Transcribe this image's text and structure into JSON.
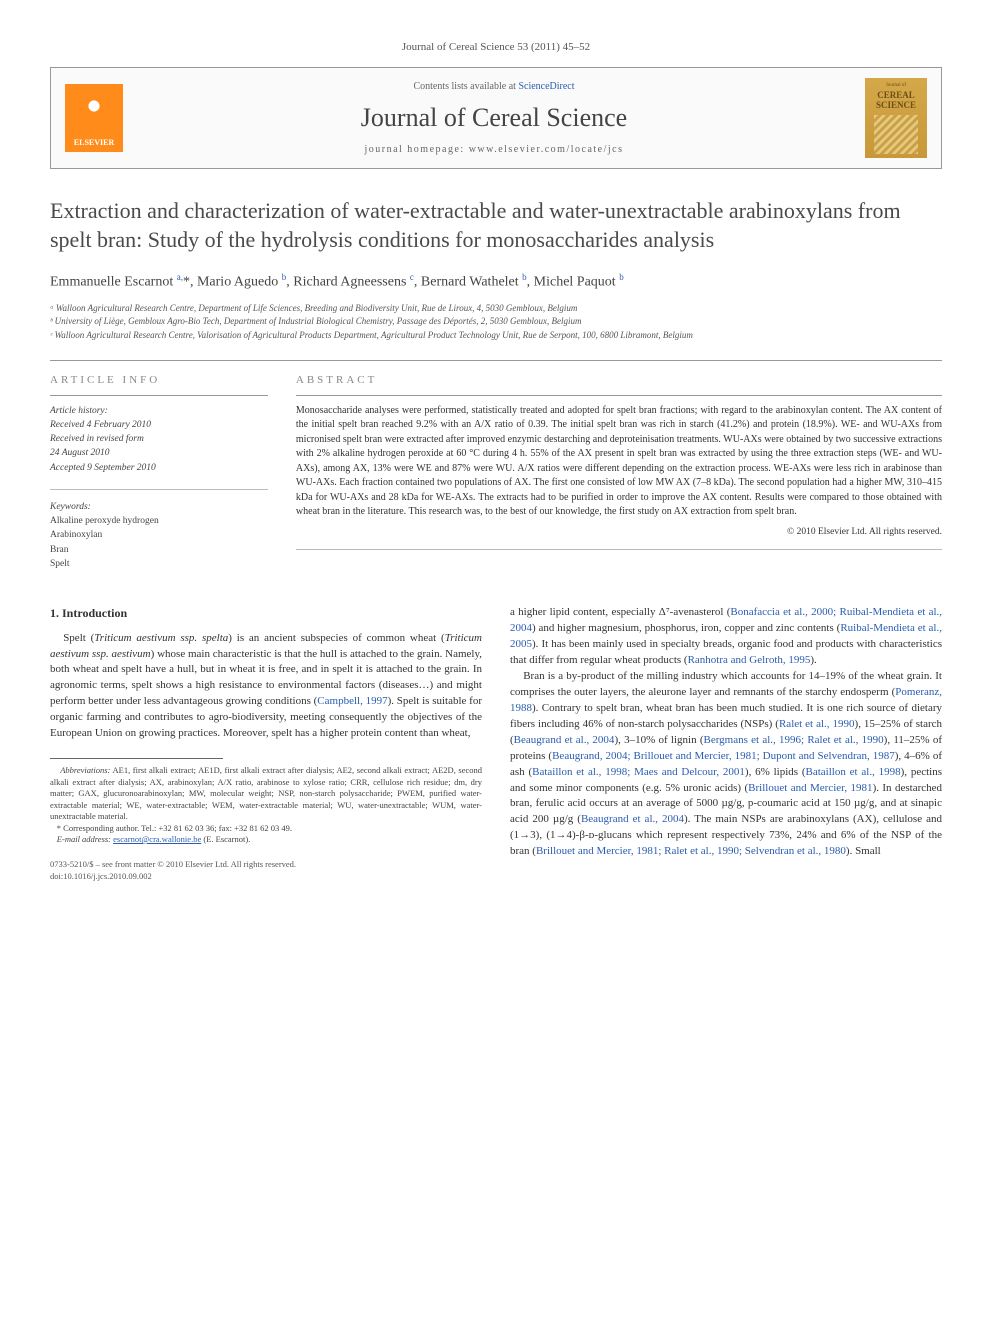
{
  "journal_ref": "Journal of Cereal Science 53 (2011) 45–52",
  "header": {
    "elsevier_label": "ELSEVIER",
    "contents_prefix": "Contents lists available at ",
    "contents_link": "ScienceDirect",
    "journal_title": "Journal of Cereal Science",
    "homepage_prefix": "journal homepage: ",
    "homepage_url": "www.elsevier.com/locate/jcs",
    "cover_label": "Journal of",
    "cover_title": "CEREAL SCIENCE"
  },
  "title": "Extraction and characterization of water-extractable and water-unextractable arabinoxylans from spelt bran: Study of the hydrolysis conditions for monosaccharides analysis",
  "authors_html": "Emmanuelle Escarnot <sup>a,</sup>*, Mario Aguedo <sup>b</sup>, Richard Agneessens <sup>c</sup>, Bernard Wathelet <sup>b</sup>, Michel Paquot <sup>b</sup>",
  "affiliations": [
    "ᵃ Walloon Agricultural Research Centre, Department of Life Sciences, Breeding and Biodiversity Unit, Rue de Liroux, 4, 5030 Gembloux, Belgium",
    "ᵇ University of Liège, Gembloux Agro-Bio Tech, Department of Industrial Biological Chemistry, Passage des Déportés, 2, 5030 Gembloux, Belgium",
    "ᶜ Walloon Agricultural Research Centre, Valorisation of Agricultural Products Department, Agricultural Product Technology Unit, Rue de Serpont, 100, 6800 Libramont, Belgium"
  ],
  "info": {
    "article_info_heading": "ARTICLE INFO",
    "abstract_heading": "ABSTRACT",
    "history_label": "Article history:",
    "history_lines": [
      "Received 4 February 2010",
      "Received in revised form",
      "24 August 2010",
      "Accepted 9 September 2010"
    ],
    "keywords_label": "Keywords:",
    "keywords": [
      "Alkaline peroxyde hydrogen",
      "Arabinoxylan",
      "Bran",
      "Spelt"
    ]
  },
  "abstract": "Monosaccharide analyses were performed, statistically treated and adopted for spelt bran fractions; with regard to the arabinoxylan content. The AX content of the initial spelt bran reached 9.2% with an A/X ratio of 0.39. The initial spelt bran was rich in starch (41.2%) and protein (18.9%). WE- and WU-AXs from micronised spelt bran were extracted after improved enzymic destarching and deproteinisation treatments. WU-AXs were obtained by two successive extractions with 2% alkaline hydrogen peroxide at 60 °C during 4 h. 55% of the AX present in spelt bran was extracted by using the three extraction steps (WE- and WU-AXs), among AX, 13% were WE and 87% were WU. A/X ratios were different depending on the extraction process. WE-AXs were less rich in arabinose than WU-AXs. Each fraction contained two populations of AX. The first one consisted of low MW AX (7–8 kDa). The second population had a higher MW, 310–415 kDa for WU-AXs and 28 kDa for WE-AXs. The extracts had to be purified in order to improve the AX content. Results were compared to those obtained with wheat bran in the literature. This research was, to the best of our knowledge, the first study on AX extraction from spelt bran.",
  "copyright": "© 2010 Elsevier Ltd. All rights reserved.",
  "body": {
    "section_heading": "1. Introduction",
    "left_p1_a": "Spelt (",
    "left_p1_species1": "Triticum aestivum ssp. spelta",
    "left_p1_b": ") is an ancient subspecies of common wheat (",
    "left_p1_species2": "Triticum aestivum ssp. aestivum",
    "left_p1_c": ") whose main characteristic is that the hull is attached to the grain. Namely, both wheat and spelt have a hull, but in wheat it is free, and in spelt it is attached to the grain. In agronomic terms, spelt shows a high resistance to environmental factors (diseases…) and might perform better under less advantageous growing conditions (",
    "left_p1_ref1": "Campbell, 1997",
    "left_p1_d": "). Spelt is suitable for organic farming and contributes to agro-biodiversity, meeting consequently the objectives of the European Union on growing practices. Moreover, spelt has a higher protein content than wheat,",
    "right_p1_a": "a higher lipid content, especially Δ⁷-avenasterol (",
    "right_p1_ref1": "Bonafaccia et al., 2000; Ruibal-Mendieta et al., 2004",
    "right_p1_b": ") and higher magnesium, phosphorus, iron, copper and zinc contents (",
    "right_p1_ref2": "Ruibal-Mendieta et al., 2005",
    "right_p1_c": "). It has been mainly used in specialty breads, organic food and products with characteristics that differ from regular wheat products (",
    "right_p1_ref3": "Ranhotra and Gelroth, 1995",
    "right_p1_d": ").",
    "right_p2_a": "Bran is a by-product of the milling industry which accounts for 14–19% of the wheat grain. It comprises the outer layers, the aleurone layer and remnants of the starchy endosperm (",
    "right_p2_ref1": "Pomeranz, 1988",
    "right_p2_b": "). Contrary to spelt bran, wheat bran has been much studied. It is one rich source of dietary fibers including 46% of non-starch polysaccharides (NSPs) (",
    "right_p2_ref2": "Ralet et al., 1990",
    "right_p2_c": "), 15–25% of starch (",
    "right_p2_ref3": "Beaugrand et al., 2004",
    "right_p2_d": "), 3–10% of lignin (",
    "right_p2_ref4": "Bergmans et al., 1996; Ralet et al., 1990",
    "right_p2_e": "), 11–25% of proteins (",
    "right_p2_ref5": "Beaugrand, 2004; Brillouet and Mercier, 1981; Dupont and Selvendran, 1987",
    "right_p2_f": "), 4–6% of ash (",
    "right_p2_ref6": "Bataillon et al., 1998; Maes and Delcour, 2001",
    "right_p2_g": "), 6% lipids (",
    "right_p2_ref7": "Bataillon et al., 1998",
    "right_p2_h": "), pectins and some minor components (e.g. 5% uronic acids) (",
    "right_p2_ref8": "Brillouet and Mercier, 1981",
    "right_p2_i": "). In destarched bran, ferulic acid occurs at an average of 5000 µg/g, p-coumaric acid at 150 µg/g, and at sinapic acid 200 µg/g (",
    "right_p2_ref9": "Beaugrand et al., 2004",
    "right_p2_j": "). The main NSPs are arabinoxylans (AX), cellulose and (1→3), (1→4)-β-ᴅ-glucans which represent respectively 73%, 24% and 6% of the NSP of the bran (",
    "right_p2_ref10": "Brillouet and Mercier, 1981; Ralet et al., 1990; Selvendran et al., 1980",
    "right_p2_k": "). Small"
  },
  "footnotes": {
    "abbrev_label": "Abbreviations:",
    "abbrev_text": " AE1, first alkali extract; AE1D, first alkali extract after dialysis; AE2, second alkali extract; AE2D, second alkali extract after dialysis; AX, arabinoxylan; A/X ratio, arabinose to xylose ratio; CRR, cellulose rich residue; dm, dry matter; GAX, glucuronoarabinoxylan; MW, molecular weight; NSP, non-starch polysaccharide; PWEM, purified water-extractable material; WE, water-extractable; WEM, water-extractable material; WU, water-unextractable; WUM, water-unextractable material.",
    "corr_label": "* Corresponding author. Tel.: +32 81 62 03 36; fax: +32 81 62 03 49.",
    "email_label": "E-mail address: ",
    "email": "escarnot@cra.wallonie.be",
    "email_suffix": " (E. Escarnot)."
  },
  "bottom": {
    "issn_line": "0733-5210/$ – see front matter © 2010 Elsevier Ltd. All rights reserved.",
    "doi_line": "doi:10.1016/j.jcs.2010.09.002"
  }
}
